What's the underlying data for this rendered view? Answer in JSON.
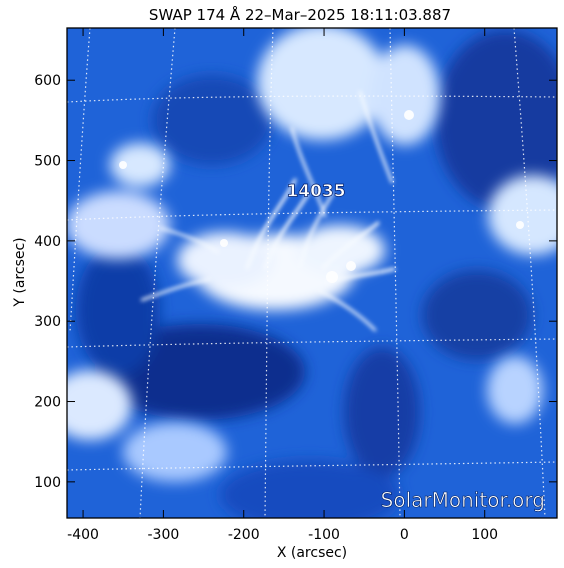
{
  "title": "SWAP 174 Å 22–Mar–2025 18:11:03.887",
  "axes": {
    "xlabel": "X (arcsec)",
    "ylabel": "Y (arcsec)",
    "xlim": [
      -420,
      190
    ],
    "ylim": [
      55,
      665
    ],
    "xticks": [
      -400,
      -300,
      -200,
      -100,
      0,
      100
    ],
    "yticks": [
      100,
      200,
      300,
      400,
      500,
      600
    ]
  },
  "region": {
    "label": "14035",
    "x": -110,
    "y": 455
  },
  "watermark": "SolarMonitor.org",
  "colors": {
    "background": "#ffffff",
    "frame": "#000000",
    "image_dark": "#0a2f8c",
    "image_mid": "#1f63d8",
    "image_light": "#dbe9ff",
    "grid": "#ffffff"
  }
}
